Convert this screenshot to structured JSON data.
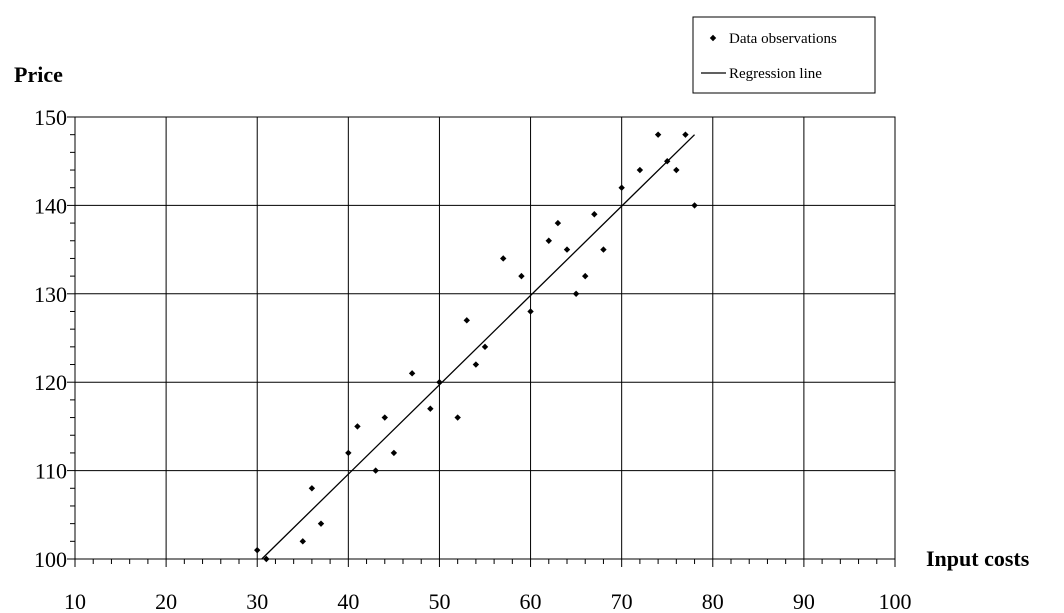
{
  "chart_data": {
    "type": "scatter",
    "title": "",
    "xlabel": "Input costs",
    "ylabel": "Price",
    "xlim": [
      10,
      100
    ],
    "ylim": [
      100,
      150
    ],
    "xticks": [
      10,
      20,
      30,
      40,
      50,
      60,
      70,
      80,
      90,
      100
    ],
    "yticks": [
      100,
      110,
      120,
      130,
      140,
      150
    ],
    "grid": true,
    "legend_position": "top-right",
    "series": [
      {
        "name": "Data observations",
        "kind": "scatter",
        "marker": "diamond",
        "color": "#000000",
        "x": [
          30,
          31,
          35,
          36,
          37,
          40,
          41,
          43,
          44,
          45,
          47,
          49,
          50,
          52,
          53,
          54,
          55,
          57,
          59,
          60,
          62,
          63,
          64,
          65,
          66,
          67,
          68,
          70,
          72,
          74,
          75,
          76,
          77,
          78
        ],
        "y": [
          101,
          100,
          102,
          108,
          104,
          112,
          115,
          110,
          116,
          112,
          121,
          117,
          120,
          116,
          127,
          122,
          124,
          134,
          132,
          128,
          136,
          138,
          135,
          130,
          132,
          139,
          135,
          142,
          144,
          148,
          145,
          144,
          148,
          140
        ]
      },
      {
        "name": "Regression line",
        "kind": "line",
        "color": "#000000",
        "x": [
          30.5,
          78
        ],
        "y": [
          100,
          148
        ]
      }
    ]
  }
}
